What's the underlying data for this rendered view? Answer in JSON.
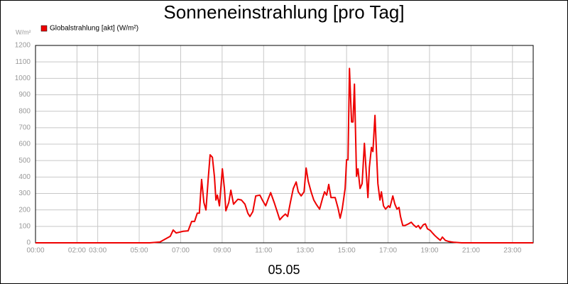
{
  "chart_data": {
    "type": "line",
    "title": "Sonneneinstrahlung [pro Tag]",
    "y_unit": "W/m²",
    "x_label": "05.05",
    "x": [
      0,
      5.5,
      6.0,
      6.5,
      6.64,
      6.78,
      7.12,
      7.36,
      7.53,
      7.67,
      7.8,
      7.9,
      8.01,
      8.12,
      8.22,
      8.32,
      8.42,
      8.53,
      8.63,
      8.7,
      8.77,
      8.87,
      9.01,
      9.11,
      9.18,
      9.32,
      9.42,
      9.55,
      9.76,
      9.93,
      10.1,
      10.24,
      10.34,
      10.48,
      10.62,
      10.82,
      10.96,
      11.1,
      11.23,
      11.34,
      11.51,
      11.64,
      11.78,
      11.92,
      12.05,
      12.16,
      12.29,
      12.43,
      12.57,
      12.67,
      12.81,
      12.95,
      13.05,
      13.15,
      13.29,
      13.42,
      13.56,
      13.7,
      13.84,
      13.94,
      14.04,
      14.14,
      14.25,
      14.45,
      14.59,
      14.69,
      14.79,
      14.93,
      15.0,
      15.07,
      15.14,
      15.24,
      15.31,
      15.38,
      15.48,
      15.55,
      15.65,
      15.75,
      15.86,
      15.96,
      16.03,
      16.1,
      16.2,
      16.27,
      16.37,
      16.44,
      16.51,
      16.61,
      16.68,
      16.78,
      16.88,
      17.02,
      17.09,
      17.23,
      17.33,
      17.43,
      17.53,
      17.6,
      17.71,
      17.81,
      17.98,
      18.12,
      18.22,
      18.36,
      18.46,
      18.56,
      18.7,
      18.8,
      18.9,
      19.04,
      19.14,
      19.25,
      19.38,
      19.52,
      19.62,
      19.76,
      19.93,
      20.2,
      20.55,
      24
    ],
    "series": [
      {
        "name": "Globalstrahlung [akt] (W/m²)",
        "color": "#ee0000",
        "values": [
          0,
          0,
          5,
          40,
          78,
          60,
          70,
          73,
          130,
          130,
          180,
          180,
          385,
          245,
          200,
          375,
          535,
          520,
          400,
          260,
          290,
          225,
          450,
          330,
          195,
          245,
          320,
          235,
          265,
          260,
          235,
          180,
          160,
          190,
          285,
          290,
          255,
          225,
          270,
          305,
          245,
          195,
          140,
          160,
          175,
          160,
          245,
          330,
          370,
          310,
          285,
          310,
          455,
          375,
          310,
          260,
          230,
          205,
          270,
          310,
          290,
          355,
          275,
          275,
          210,
          150,
          205,
          330,
          505,
          505,
          1060,
          735,
          735,
          965,
          405,
          450,
          330,
          360,
          605,
          405,
          275,
          460,
          580,
          555,
          775,
          560,
          360,
          260,
          310,
          225,
          205,
          225,
          215,
          285,
          235,
          205,
          215,
          160,
          105,
          105,
          115,
          125,
          110,
          95,
          105,
          85,
          110,
          115,
          85,
          75,
          60,
          45,
          30,
          15,
          35,
          15,
          8,
          3,
          0,
          0
        ]
      }
    ],
    "xlim": [
      0,
      24
    ],
    "xticks": [
      {
        "value": 0,
        "label": "00:00"
      },
      {
        "value": 2,
        "label": "02:00"
      },
      {
        "value": 3,
        "label": "03:00"
      },
      {
        "value": 5,
        "label": "05:00"
      },
      {
        "value": 7,
        "label": "07:00"
      },
      {
        "value": 9,
        "label": "09:00"
      },
      {
        "value": 11,
        "label": "11:00"
      },
      {
        "value": 13,
        "label": "13:00"
      },
      {
        "value": 15,
        "label": "15:00"
      },
      {
        "value": 17,
        "label": "17:00"
      },
      {
        "value": 19,
        "label": "19:00"
      },
      {
        "value": 21,
        "label": "21:00"
      },
      {
        "value": 23,
        "label": "23:00"
      }
    ],
    "ylim": [
      0,
      1200
    ],
    "yticks": [
      0,
      100,
      200,
      300,
      400,
      500,
      600,
      700,
      800,
      900,
      1000,
      1100,
      1200
    ],
    "grid": true,
    "legend": "top-left"
  }
}
